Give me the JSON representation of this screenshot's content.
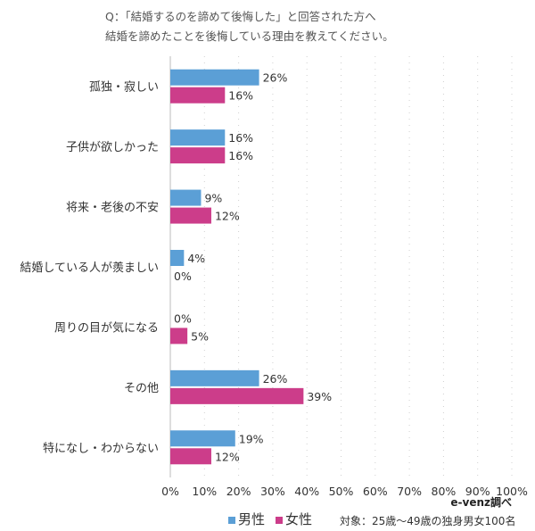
{
  "chart_data": {
    "type": "bar",
    "orientation": "horizontal",
    "title": [
      "Q：「結婚するのを諦めて後悔した」と回答された方へ",
      "結婚を諦めたことを後悔している理由を教えてください。"
    ],
    "categories": [
      "孤独・寂しい",
      "子供が欲しかった",
      "将来・老後の不安",
      "結婚している人が羨ましい",
      "周りの目が気になる",
      "その他",
      "特になし・わからない"
    ],
    "series": [
      {
        "name": "男性",
        "color": "#5b9fd6",
        "values": [
          26,
          16,
          9,
          4,
          0,
          26,
          19
        ]
      },
      {
        "name": "女性",
        "color": "#cc3d8a",
        "values": [
          16,
          16,
          12,
          0,
          5,
          39,
          12
        ]
      }
    ],
    "xlim": [
      0,
      100
    ],
    "xticks": [
      "0%",
      "10%",
      "20%",
      "30%",
      "40%",
      "50%",
      "60%",
      "70%",
      "80%",
      "90%",
      "100%"
    ],
    "grid": true,
    "legend_position": "bottom",
    "source": "e-venz調べ",
    "note": "対象：25歳〜49歳の独身男女100名"
  }
}
